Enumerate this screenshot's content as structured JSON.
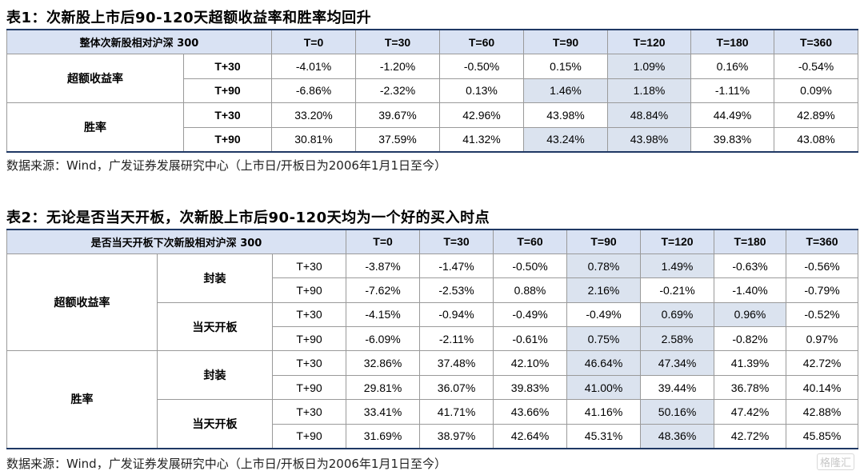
{
  "table1": {
    "title": "表1：次新股上市后90-120天超额收益率和胜率均回升",
    "corner": "整体次新股相对沪深 300",
    "columns": [
      "T=0",
      "T=30",
      "T=60",
      "T=90",
      "T=120",
      "T=180",
      "T=360"
    ],
    "groups": [
      {
        "label": "超额收益率",
        "rows": [
          {
            "period": "T+30",
            "values": [
              "-4.01%",
              "-1.20%",
              "-0.50%",
              "0.15%",
              "1.09%",
              "0.16%",
              "-0.54%"
            ],
            "highlight": [
              4
            ]
          },
          {
            "period": "T+90",
            "values": [
              "-6.86%",
              "-2.32%",
              "0.13%",
              "1.46%",
              "1.18%",
              "-1.11%",
              "0.09%"
            ],
            "highlight": [
              3,
              4
            ]
          }
        ]
      },
      {
        "label": "胜率",
        "rows": [
          {
            "period": "T+30",
            "values": [
              "33.20%",
              "39.67%",
              "42.96%",
              "43.98%",
              "48.84%",
              "44.49%",
              "42.89%"
            ],
            "highlight": [
              4
            ]
          },
          {
            "period": "T+90",
            "values": [
              "30.81%",
              "37.59%",
              "41.32%",
              "43.24%",
              "43.98%",
              "39.83%",
              "43.08%"
            ],
            "highlight": [
              3,
              4
            ]
          }
        ]
      }
    ],
    "source": "数据来源：Wind，广发证券发展研究中心（上市日/开板日为2006年1月1日至今）"
  },
  "table2": {
    "title": "表2：无论是否当天开板，次新股上市后90-120天均为一个好的买入时点",
    "corner": "是否当天开板下次新股相对沪深 300",
    "columns": [
      "T=0",
      "T=30",
      "T=60",
      "T=90",
      "T=120",
      "T=180",
      "T=360"
    ],
    "groups": [
      {
        "label": "超额收益率",
        "subgroups": [
          {
            "label": "封装",
            "rows": [
              {
                "period": "T+30",
                "values": [
                  "-3.87%",
                  "-1.47%",
                  "-0.50%",
                  "0.78%",
                  "1.49%",
                  "-0.63%",
                  "-0.56%"
                ],
                "highlight": [
                  3,
                  4
                ]
              },
              {
                "period": "T+90",
                "values": [
                  "-7.62%",
                  "-2.53%",
                  "0.88%",
                  "2.16%",
                  "-0.21%",
                  "-1.40%",
                  "-0.79%"
                ],
                "highlight": [
                  3
                ]
              }
            ]
          },
          {
            "label": "当天开板",
            "rows": [
              {
                "period": "T+30",
                "values": [
                  "-4.15%",
                  "-0.94%",
                  "-0.49%",
                  "-0.49%",
                  "0.69%",
                  "0.96%",
                  "-0.52%"
                ],
                "highlight": [
                  4,
                  5
                ]
              },
              {
                "period": "T+90",
                "values": [
                  "-6.09%",
                  "-2.11%",
                  "-0.61%",
                  "0.75%",
                  "2.58%",
                  "-0.82%",
                  "0.97%"
                ],
                "highlight": [
                  3,
                  4
                ]
              }
            ]
          }
        ]
      },
      {
        "label": "胜率",
        "subgroups": [
          {
            "label": "封装",
            "rows": [
              {
                "period": "T+30",
                "values": [
                  "32.86%",
                  "37.48%",
                  "42.10%",
                  "46.64%",
                  "47.34%",
                  "41.39%",
                  "42.72%"
                ],
                "highlight": [
                  3,
                  4
                ]
              },
              {
                "period": "T+90",
                "values": [
                  "29.81%",
                  "36.07%",
                  "39.83%",
                  "41.00%",
                  "39.44%",
                  "36.78%",
                  "40.14%"
                ],
                "highlight": [
                  3
                ]
              }
            ]
          },
          {
            "label": "当天开板",
            "rows": [
              {
                "period": "T+30",
                "values": [
                  "33.41%",
                  "41.71%",
                  "43.66%",
                  "41.16%",
                  "50.16%",
                  "47.42%",
                  "42.88%"
                ],
                "highlight": [
                  4
                ]
              },
              {
                "period": "T+90",
                "values": [
                  "31.69%",
                  "38.97%",
                  "42.64%",
                  "45.31%",
                  "48.36%",
                  "42.72%",
                  "45.85%"
                ],
                "highlight": [
                  4
                ]
              }
            ]
          }
        ]
      }
    ],
    "source": "数据来源：Wind，广发证券发展研究中心（上市日/开板日为2006年1月1日至今）"
  },
  "watermark": "格隆汇"
}
